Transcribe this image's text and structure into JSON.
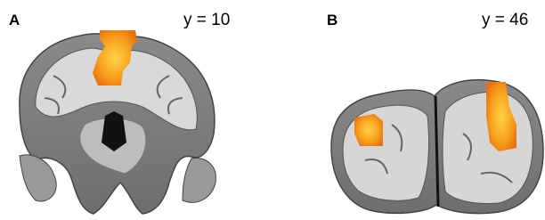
{
  "panels": [
    {
      "label": "A",
      "coordinate": "y = 10"
    },
    {
      "label": "B",
      "coordinate": "y = 46"
    }
  ]
}
